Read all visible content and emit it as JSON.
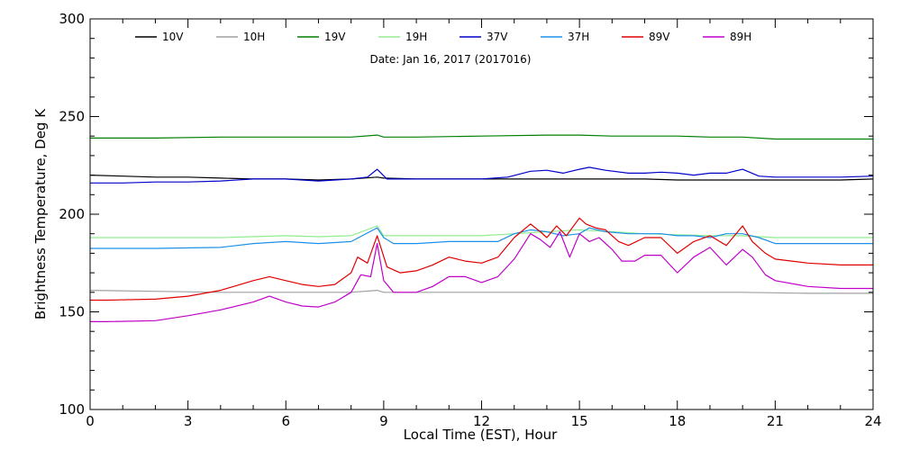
{
  "chart_data": {
    "type": "line",
    "title": "",
    "annotation": "Date: Jan 16, 2017 (2017016)",
    "xlabel": "Local Time (EST), Hour",
    "ylabel": "Brightness Temperature, Deg K",
    "xlim": [
      0,
      24
    ],
    "ylim": [
      100,
      300
    ],
    "xticks": [
      0,
      3,
      6,
      9,
      12,
      15,
      18,
      21,
      24
    ],
    "yticks": [
      100,
      150,
      200,
      250,
      300
    ],
    "grid": false,
    "legend_position": "top",
    "series": [
      {
        "name": "10V",
        "color": "#000000",
        "x": [
          0,
          1,
          2,
          3,
          4,
          5,
          6,
          7,
          8,
          8.8,
          9,
          10,
          11,
          12,
          13,
          14,
          15,
          16,
          17,
          18,
          19,
          20,
          21,
          22,
          23,
          24
        ],
        "y": [
          220,
          219.5,
          219,
          219,
          218.5,
          218,
          218,
          217.5,
          218,
          219,
          218.5,
          218,
          218,
          218,
          218,
          218,
          218,
          218,
          218,
          217.5,
          217.5,
          217.5,
          217.5,
          217.5,
          217.5,
          218
        ]
      },
      {
        "name": "10H",
        "color": "#a0a0a0",
        "x": [
          0,
          2,
          4,
          6,
          8,
          8.8,
          9,
          10,
          12,
          14,
          16,
          18,
          20,
          22,
          24
        ],
        "y": [
          161,
          160.5,
          160,
          160,
          160,
          161,
          160,
          160,
          160,
          160,
          160,
          160,
          160,
          159.5,
          159.5
        ]
      },
      {
        "name": "19V",
        "color": "#008000",
        "x": [
          0,
          2,
          4,
          6,
          8,
          8.8,
          9,
          10,
          12,
          14,
          15,
          16,
          17,
          18,
          19,
          20,
          21,
          22,
          23,
          24
        ],
        "y": [
          239,
          239,
          239.5,
          239.5,
          239.5,
          240.5,
          239.5,
          239.5,
          240,
          240.5,
          240.5,
          240,
          240,
          240,
          239.5,
          239.5,
          238.5,
          238.5,
          238.5,
          238.5
        ]
      },
      {
        "name": "19H",
        "color": "#90ee90",
        "x": [
          0,
          2,
          4,
          6,
          7,
          8,
          8.8,
          9,
          10,
          12,
          13,
          14,
          15,
          16,
          17,
          18,
          19,
          20,
          21,
          22,
          23,
          24
        ],
        "y": [
          188,
          188,
          188,
          189,
          188.5,
          189,
          194,
          189,
          189,
          189,
          190,
          191,
          192,
          191,
          190,
          189.5,
          189,
          189,
          188,
          188,
          188,
          188
        ]
      },
      {
        "name": "37V",
        "color": "#0000c8",
        "x": [
          0,
          1,
          2,
          3,
          4,
          5,
          6,
          7,
          8,
          8.5,
          8.8,
          9.1,
          9.5,
          10,
          11,
          12,
          12.8,
          13.5,
          14,
          14.5,
          15,
          15.3,
          15.8,
          16.5,
          17,
          17.5,
          18,
          18.5,
          19,
          19.5,
          20,
          20.5,
          21,
          22,
          23,
          24
        ],
        "y": [
          216,
          216,
          216.5,
          216.5,
          217,
          218,
          218,
          217,
          218,
          219,
          223,
          218,
          218,
          218,
          218,
          218,
          219,
          222,
          222.5,
          221,
          223,
          224,
          222.5,
          221,
          221,
          221.5,
          221,
          220,
          221,
          221,
          223,
          219.5,
          219,
          219,
          219,
          219.5
        ]
      },
      {
        "name": "37H",
        "color": "#1e90e8",
        "x": [
          0,
          2,
          4,
          5,
          6,
          7,
          8,
          8.8,
          9,
          9.3,
          10,
          11,
          12,
          12.5,
          13,
          13.5,
          14,
          14.5,
          15,
          15.3,
          15.8,
          16.5,
          17,
          17.5,
          18,
          18.5,
          19,
          19.5,
          20,
          20.5,
          21,
          22,
          23,
          24
        ],
        "y": [
          182.5,
          182.5,
          183,
          185,
          186,
          185,
          186,
          193,
          188,
          185,
          185,
          186,
          186,
          186,
          190,
          192,
          191,
          189,
          190,
          193,
          191,
          190,
          190,
          190,
          189,
          189,
          188,
          190,
          190,
          188,
          185,
          185,
          185,
          185
        ]
      },
      {
        "name": "89V",
        "color": "#e00000",
        "x": [
          0,
          0.5,
          2,
          3,
          4,
          5,
          5.5,
          6,
          6.5,
          7,
          7.5,
          8,
          8.2,
          8.5,
          8.8,
          9.1,
          9.5,
          10,
          10.5,
          11,
          11.5,
          12,
          12.5,
          13,
          13.5,
          13.8,
          14,
          14.3,
          14.6,
          15,
          15.2,
          15.5,
          15.8,
          16.2,
          16.5,
          17,
          17.5,
          18,
          18.5,
          19,
          19.5,
          20,
          20.3,
          20.7,
          21,
          22,
          23,
          24
        ],
        "y": [
          156,
          156,
          156.5,
          158,
          161,
          166,
          168,
          166,
          164,
          163,
          164,
          170,
          178,
          175,
          189,
          173,
          170,
          171,
          174,
          178,
          176,
          175,
          178,
          188,
          195,
          191,
          188,
          194,
          189,
          198,
          195,
          193,
          192,
          186,
          184,
          188,
          188,
          180,
          186,
          189,
          184,
          194,
          186,
          180,
          177,
          175,
          174,
          174
        ]
      },
      {
        "name": "89H",
        "color": "#c000c8",
        "x": [
          0,
          0.5,
          2,
          3,
          4,
          5,
          5.5,
          6,
          6.5,
          7,
          7.5,
          8,
          8.3,
          8.6,
          8.8,
          9,
          9.3,
          10,
          10.5,
          11,
          11.5,
          12,
          12.5,
          13,
          13.5,
          13.8,
          14.1,
          14.4,
          14.7,
          15,
          15.3,
          15.6,
          16,
          16.3,
          16.7,
          17,
          17.5,
          18,
          18.5,
          19,
          19.5,
          20,
          20.3,
          20.7,
          21,
          22,
          23,
          24
        ],
        "y": [
          145,
          145,
          145.5,
          148,
          151,
          155,
          158,
          155,
          153,
          152.5,
          155,
          160,
          169,
          168,
          185,
          166,
          160,
          160,
          163,
          168,
          168,
          165,
          168,
          177,
          190,
          187,
          183,
          191,
          178,
          190,
          186,
          188,
          182,
          176,
          176,
          179,
          179,
          170,
          178,
          183,
          174,
          182,
          178,
          169,
          166,
          163,
          162,
          162
        ]
      }
    ]
  }
}
